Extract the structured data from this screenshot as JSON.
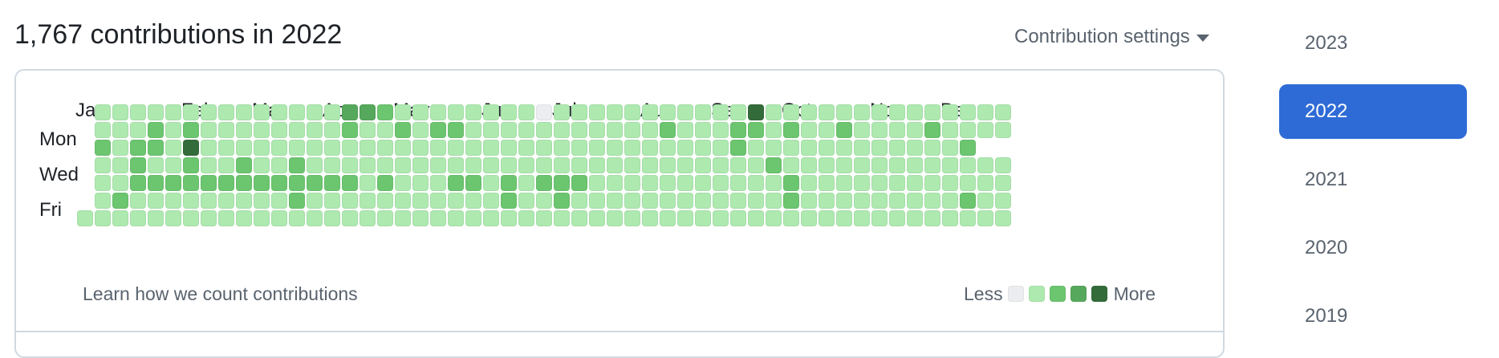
{
  "heading": "1,767 contributions in 2022",
  "settings_label": "Contribution settings",
  "months": [
    "Jan",
    "Feb",
    "Mar",
    "Apr",
    "May",
    "Jun",
    "Jul",
    "Aug",
    "Sep",
    "Oct",
    "Nov",
    "Dec"
  ],
  "month_week_index": [
    0,
    6,
    10,
    14,
    18,
    23,
    27,
    32,
    36,
    40,
    45,
    49
  ],
  "day_labels": {
    "mon": "Mon",
    "wed": "Wed",
    "fri": "Fri"
  },
  "learn_link": "Learn how we count contributions",
  "legend": {
    "less": "Less",
    "more": "More"
  },
  "colors": [
    "#ebedf0",
    "#aee9b0",
    "#6cc56f",
    "#56a85c",
    "#346b3a"
  ],
  "grid": {
    "first_week_start_row": 6,
    "rows": [
      "11111111111111332111111110111111111114111111111111111111111111",
      "11121211111111211212211111111111211122121121111211111111111111",
      "21221411111111111111111111111111111121111111111112",
      "11211211211211111111111111111111111111211111111111111111112111",
      "11222222222222212111221212221111111111121111111111111111111111",
      "1211111111121111111111121121111111111112111111111211111111111111",
      "1111111111111111111111111111111111111111111111111111111111111111"
    ]
  },
  "years": [
    "2023",
    "2022",
    "2021",
    "2020",
    "2019"
  ],
  "active_year": "2022"
}
